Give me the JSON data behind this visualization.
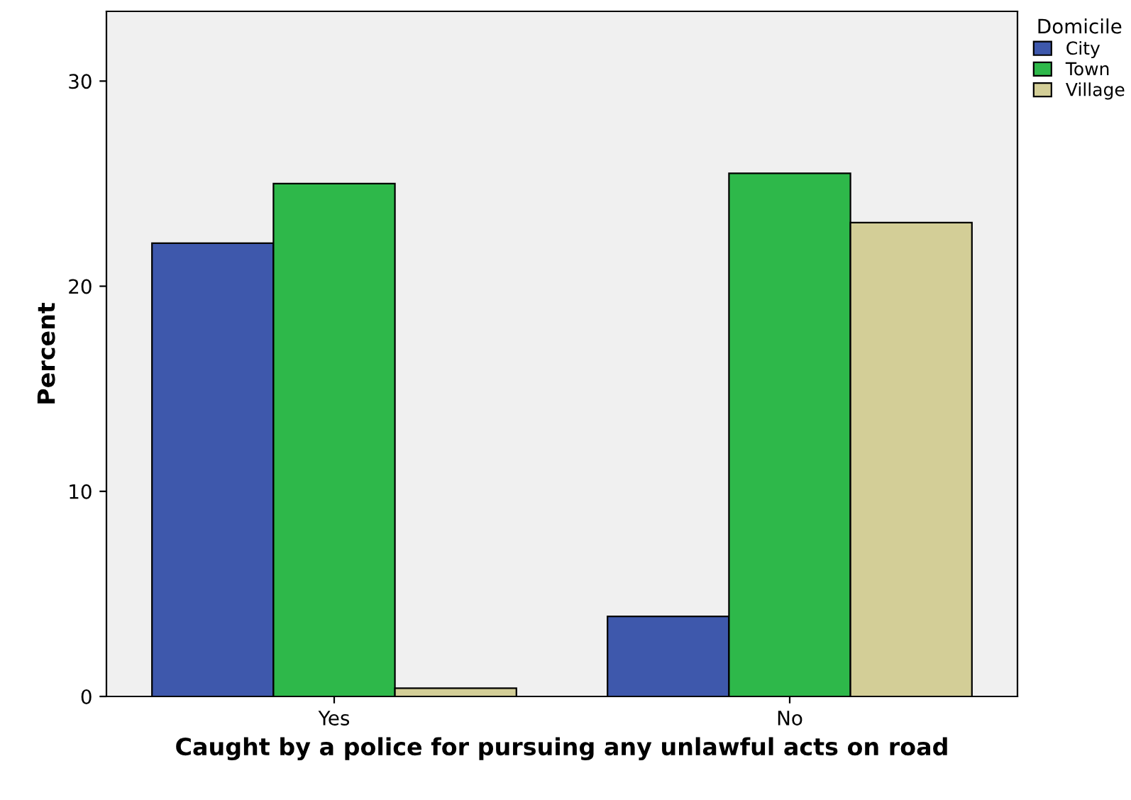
{
  "chart_data": {
    "type": "bar",
    "xlabel": "Caught by a police for pursuing any unlawful acts on road",
    "ylabel": "Percent",
    "legend_title": "Domicile",
    "categories": [
      "Yes",
      "No"
    ],
    "series": [
      {
        "name": "City",
        "color": "#3e58ac",
        "values": [
          22.1,
          3.9
        ]
      },
      {
        "name": "Town",
        "color": "#2eb84a",
        "values": [
          25.0,
          25.5
        ]
      },
      {
        "name": "Village",
        "color": "#d3ce97",
        "values": [
          0.4,
          23.1
        ]
      }
    ],
    "ylim": [
      0,
      33.4
    ],
    "yticks": [
      0,
      10,
      20,
      30
    ],
    "grid": false,
    "legend": "top right"
  }
}
